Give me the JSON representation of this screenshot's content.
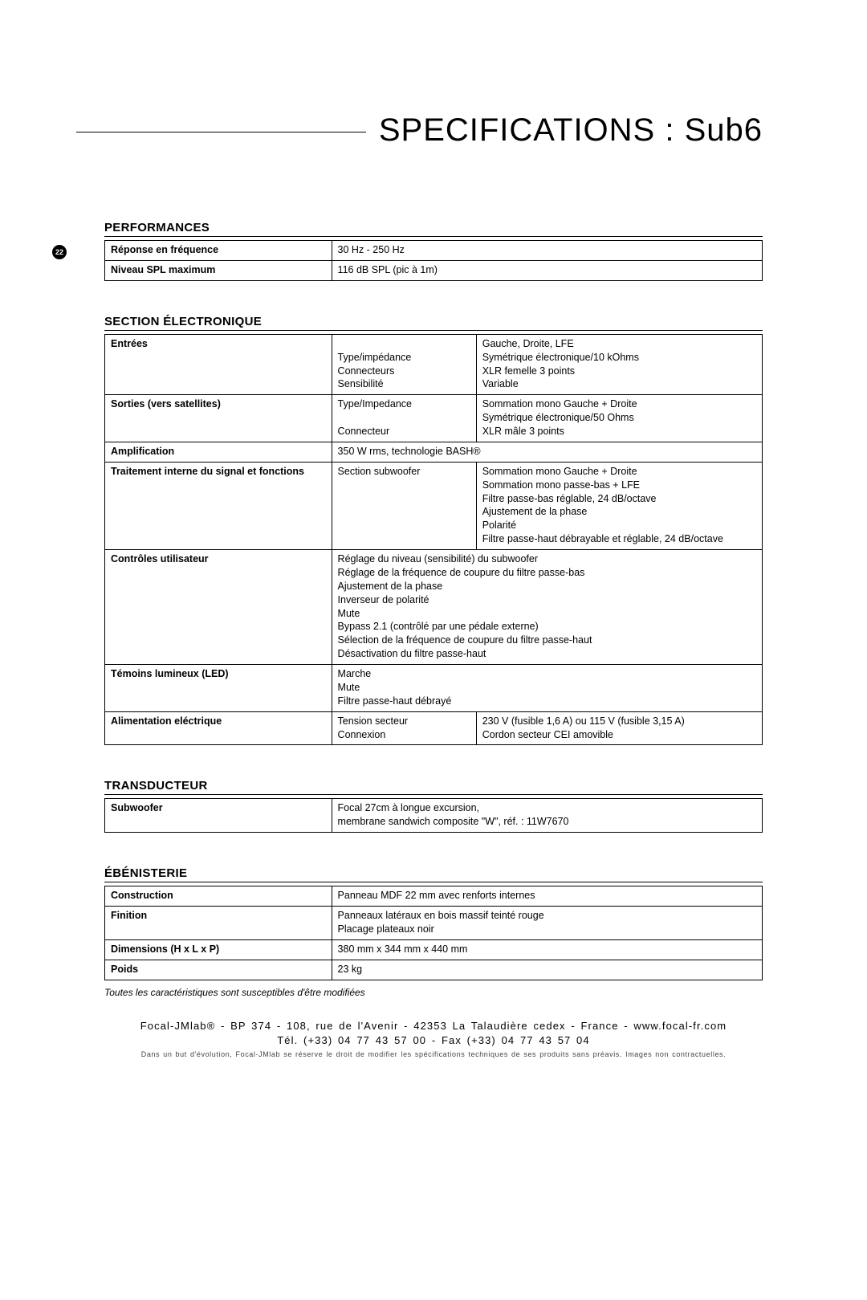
{
  "pageNumber": "22",
  "title": "SPECIFICATIONS : Sub6",
  "sections": {
    "performances": {
      "heading": "PERFORMANCES",
      "rows": [
        {
          "label": "Réponse en fréquence",
          "value": "30 Hz - 250 Hz"
        },
        {
          "label": "Niveau SPL maximum",
          "value": "116 dB SPL (pic à 1m)"
        }
      ]
    },
    "electronique": {
      "heading": "SECTION ÉLECTRONIQUE",
      "rows": {
        "entrees": {
          "label": "Entrées",
          "sub": "\nType/impédance\nConnecteurs\nSensibilité",
          "val": "Gauche, Droite, LFE\nSymétrique électronique/10 kOhms\nXLR femelle 3 points\nVariable"
        },
        "sorties": {
          "label": "Sorties (vers satellites)",
          "sub": "Type/Impedance\n\nConnecteur",
          "val": "Sommation mono Gauche + Droite\nSymétrique électronique/50 Ohms\nXLR mâle 3 points"
        },
        "ampli": {
          "label": "Amplification",
          "val": "350 W rms, technologie BASH®"
        },
        "traitement": {
          "label": "Traitement interne du signal et fonctions",
          "sub": "Section subwoofer",
          "val": "Sommation mono Gauche + Droite\nSommation mono passe-bas + LFE\nFiltre passe-bas réglable, 24 dB/octave\nAjustement de la phase\nPolarité\nFiltre passe-haut débrayable et réglable, 24 dB/octave"
        },
        "controles": {
          "label": "Contrôles utilisateur",
          "val": "Réglage du niveau (sensibilité) du subwoofer\nRéglage de la fréquence de coupure du filtre passe-bas\nAjustement de la phase\nInverseur de polarité\nMute\nBypass 2.1 (contrôlé par une pédale externe)\nSélection de la fréquence de coupure du filtre passe-haut\nDésactivation du filtre passe-haut"
        },
        "temoins": {
          "label": "Témoins lumineux (LED)",
          "val": "Marche\nMute\nFiltre passe-haut débrayé"
        },
        "alim": {
          "label": "Alimentation eléctrique",
          "sub": "Tension secteur\nConnexion",
          "val": "230 V (fusible 1,6 A) ou 115 V (fusible 3,15 A)\nCordon secteur CEI amovible"
        }
      }
    },
    "transducteur": {
      "heading": "TRANSDUCTEUR",
      "rows": [
        {
          "label": "Subwoofer",
          "value": "Focal 27cm à longue excursion,\nmembrane sandwich composite \"W\", réf. : 11W7670"
        }
      ]
    },
    "ebenisterie": {
      "heading": "ÉBÉNISTERIE",
      "rows": [
        {
          "label": "Construction",
          "value": "Panneau MDF 22 mm avec renforts internes"
        },
        {
          "label": "Finition",
          "value": "Panneaux latéraux en bois massif teinté rouge\nPlacage plateaux noir"
        },
        {
          "label": "Dimensions (H x L x P)",
          "value": "380 mm x 344 mm x 440 mm"
        },
        {
          "label": "Poids",
          "value": "23 kg"
        }
      ]
    }
  },
  "footnote": "Toutes les caractéristiques sont susceptibles d'être modifiées",
  "footer": {
    "line1": "Focal-JMlab® - BP 374 - 108, rue de l'Avenir - 42353 La Talaudière cedex - France - www.focal-fr.com",
    "line2": "Tél. (+33) 04 77 43 57 00 - Fax (+33) 04 77 43 57 04",
    "fine": "Dans un but d'évolution, Focal-JMlab se réserve le droit de modifier les spécifications techniques de ses produits sans préavis. Images non contractuelles."
  }
}
